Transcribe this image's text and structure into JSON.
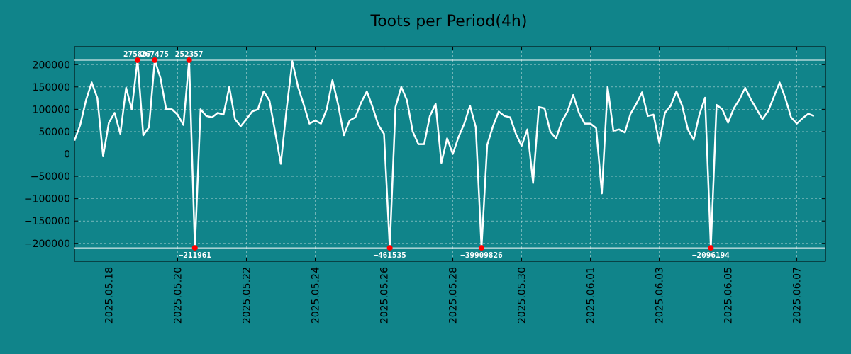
{
  "colors": {
    "background": "#10848a",
    "line": "#ffffff",
    "marker": "#ff0000",
    "grid": "#d8e8e8",
    "axis": "#000000"
  },
  "chart_data": {
    "type": "line",
    "title": "Toots per Period(4h)",
    "xlabel": "",
    "ylabel": "",
    "x_range": [
      "2025-05-17 00:00",
      "2025-06-07 20:00"
    ],
    "ylim": [
      -240000,
      240000
    ],
    "clip_limits": {
      "upper": 210000,
      "lower": -210000
    },
    "grid": true,
    "y_ticks": [
      200000,
      150000,
      100000,
      50000,
      0,
      -50000,
      -100000,
      -150000,
      -200000
    ],
    "y_tick_labels": [
      "200000",
      "150000",
      "100000",
      "50000",
      "0",
      "−50000",
      "−100000",
      "−150000",
      "−200000"
    ],
    "x_ticks": [
      "2025-05-18",
      "2025-05-20",
      "2025-05-22",
      "2025-05-24",
      "2025-05-26",
      "2025-05-28",
      "2025-05-30",
      "2025-06-01",
      "2025-06-03",
      "2025-06-05",
      "2025-06-07"
    ],
    "x_tick_labels": [
      "2025.05.18",
      "2025.05.20",
      "2025.05.22",
      "2025.05.24",
      "2025.05.26",
      "2025.05.28",
      "2025.05.30",
      "2025.06.01",
      "2025.06.03",
      "2025.06.05",
      "2025.06.07"
    ],
    "series": [
      {
        "name": "toots",
        "period_hours": 4,
        "values": [
          30000,
          65000,
          120000,
          160000,
          125000,
          -5000,
          70000,
          92000,
          45000,
          148000,
          100000,
          210000,
          42000,
          60000,
          210000,
          170000,
          100000,
          100000,
          88000,
          65000,
          210000,
          -210000,
          100000,
          85000,
          82000,
          92000,
          88000,
          150000,
          78000,
          62000,
          78000,
          95000,
          100000,
          140000,
          120000,
          50000,
          -22000,
          100000,
          207000,
          150000,
          110000,
          68000,
          75000,
          68000,
          100000,
          165000,
          110000,
          42000,
          75000,
          82000,
          115000,
          140000,
          105000,
          65000,
          45000,
          -210000,
          105000,
          150000,
          120000,
          50000,
          22000,
          22000,
          85000,
          112000,
          -20000,
          35000,
          0,
          38000,
          68000,
          108000,
          60000,
          -210000,
          20000,
          62000,
          95000,
          85000,
          82000,
          45000,
          18000,
          55000,
          -65000,
          105000,
          102000,
          50000,
          35000,
          72000,
          95000,
          132000,
          92000,
          68000,
          68000,
          58000,
          -88000,
          150000,
          52000,
          55000,
          48000,
          90000,
          112000,
          138000,
          85000,
          88000,
          25000,
          92000,
          108000,
          140000,
          108000,
          55000,
          32000,
          88000,
          126000,
          -210000,
          110000,
          100000,
          70000,
          102000,
          122000,
          148000,
          122000,
          100000,
          78000,
          96000,
          128000,
          160000,
          125000,
          82000,
          68000,
          80000,
          90000,
          85000
        ]
      }
    ],
    "annotations": [
      {
        "index": 11,
        "value": 275807,
        "label": "275807",
        "position": "upper"
      },
      {
        "index": 14,
        "value": 267475,
        "label": "267475",
        "position": "upper"
      },
      {
        "index": 20,
        "value": 252357,
        "label": "252357",
        "position": "upper"
      },
      {
        "index": 21,
        "value": -211961,
        "label": "−211961",
        "position": "lower"
      },
      {
        "index": 55,
        "value": -461535,
        "label": "−461535",
        "position": "lower"
      },
      {
        "index": 71,
        "value": -39909826,
        "label": "−39909826",
        "position": "lower"
      },
      {
        "index": 111,
        "value": -2096194,
        "label": "−2096194",
        "position": "lower"
      }
    ]
  }
}
